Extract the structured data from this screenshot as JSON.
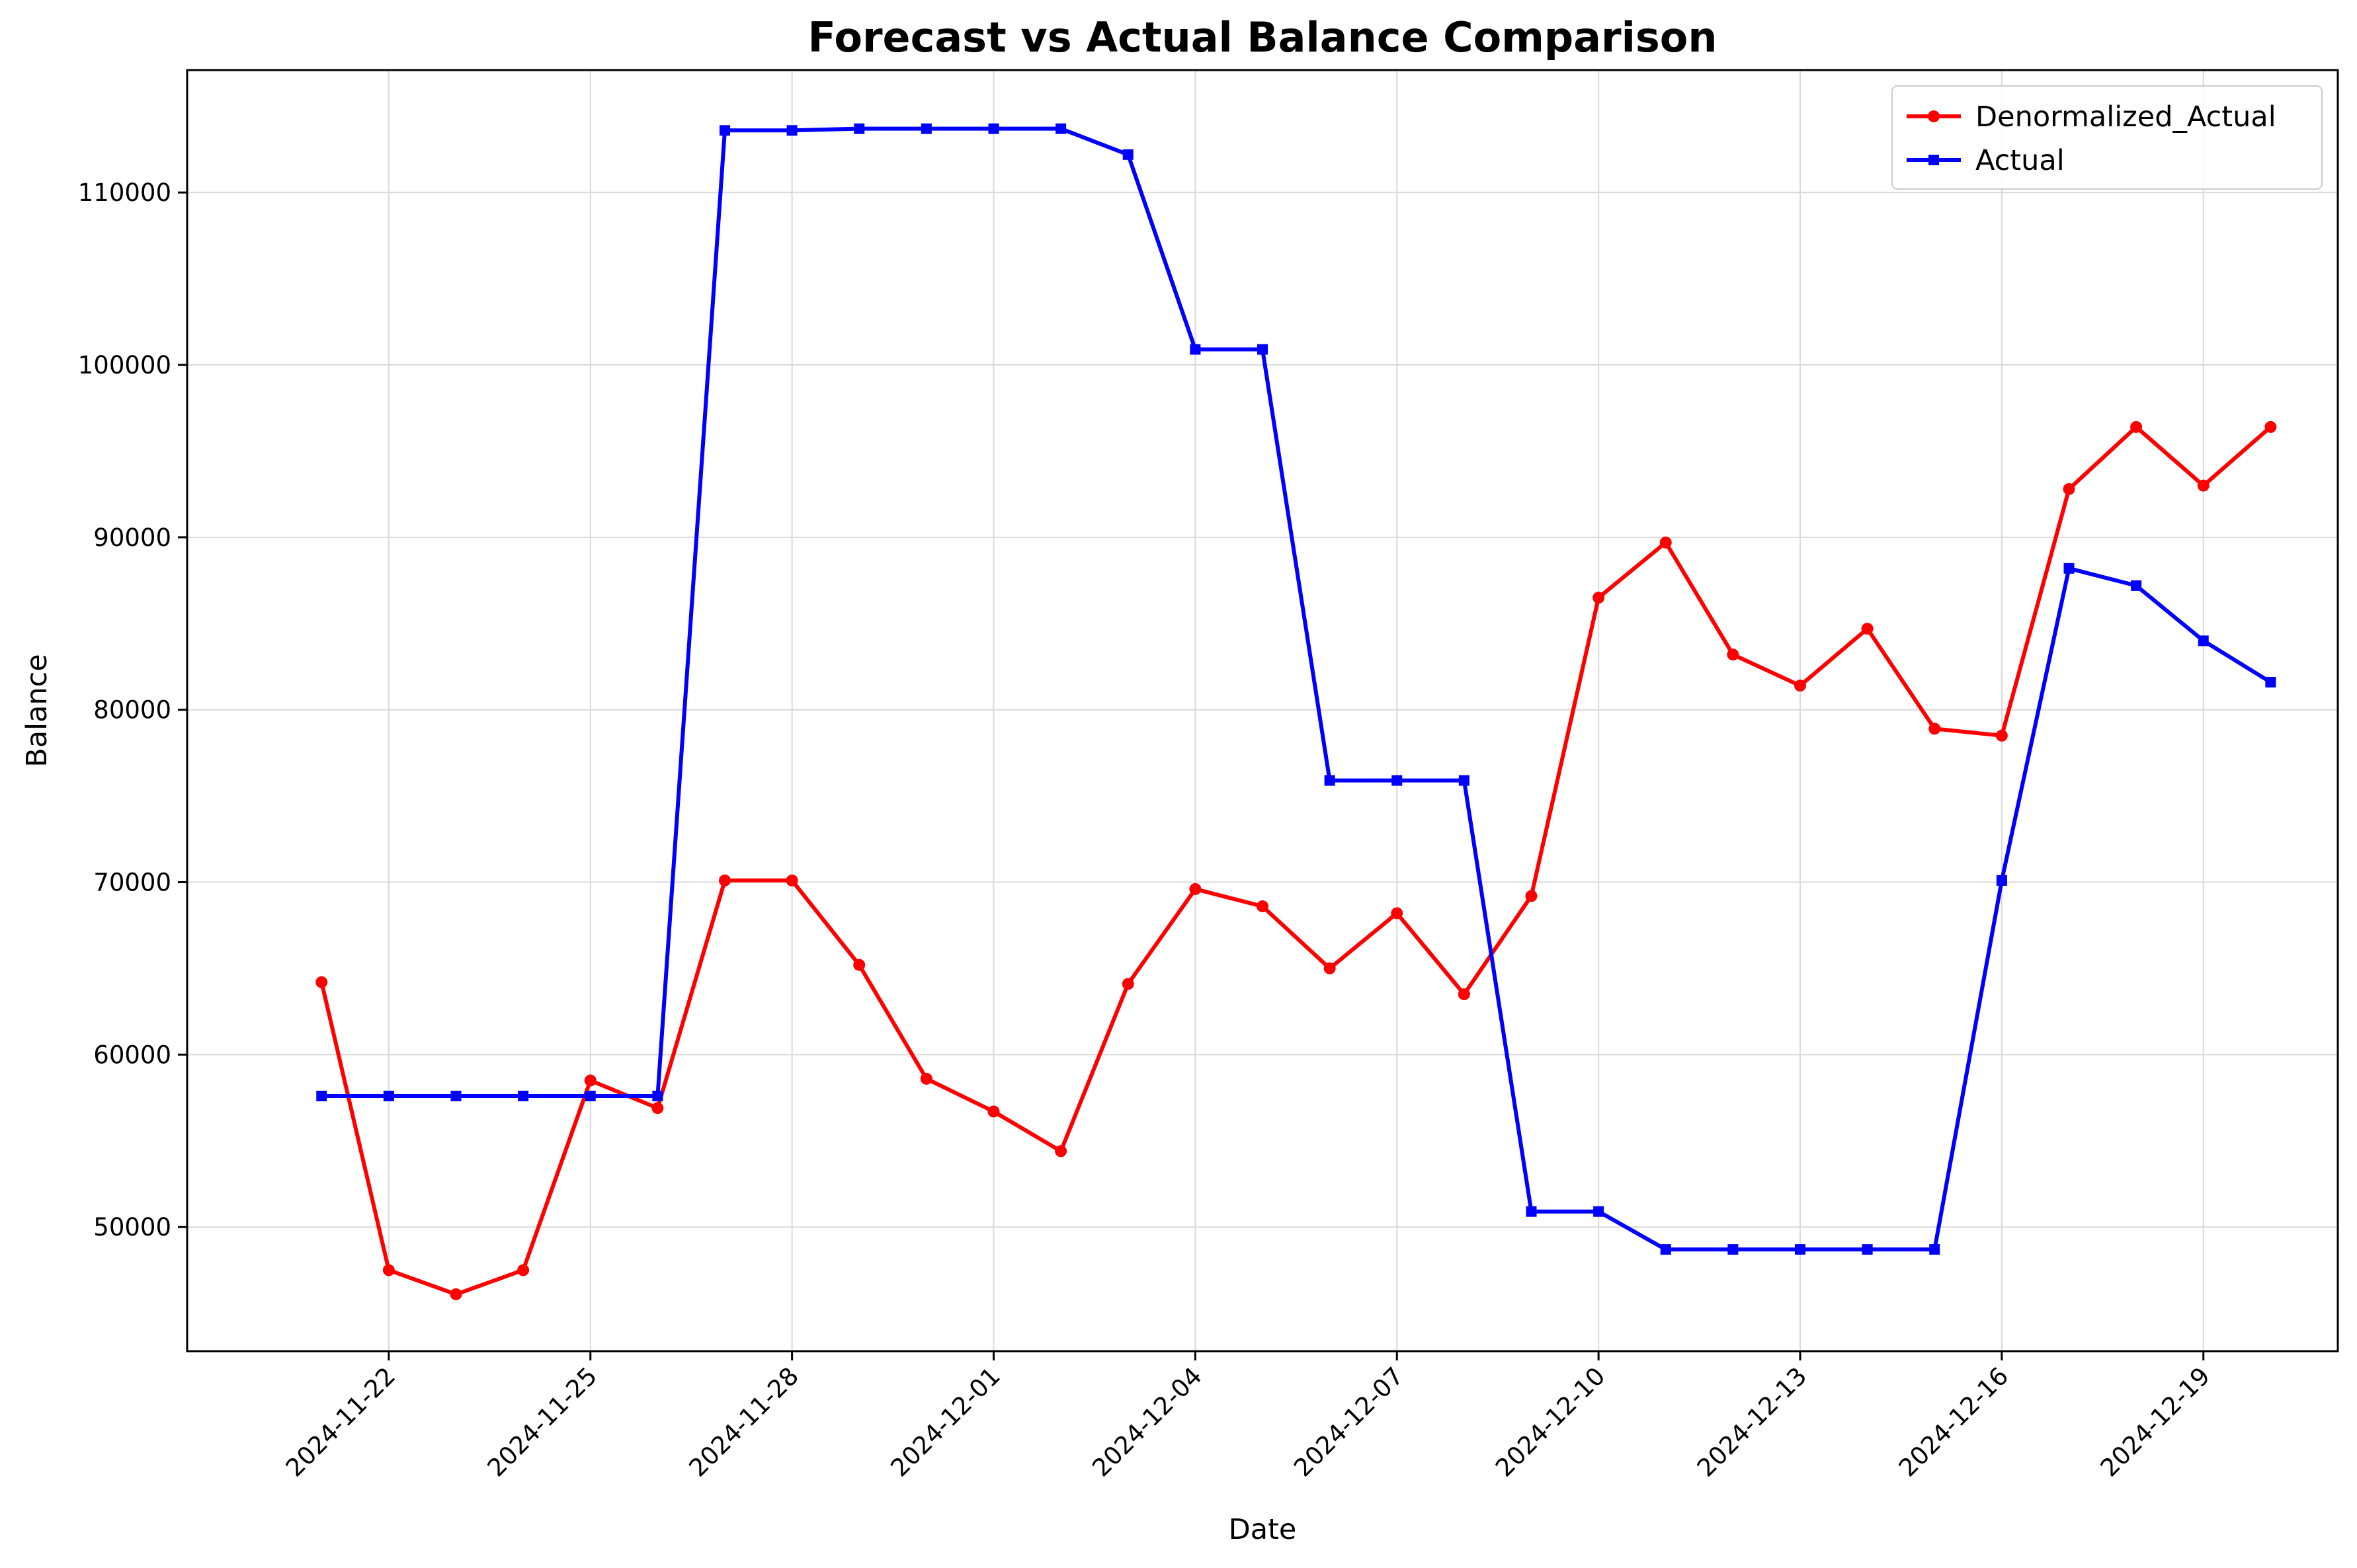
{
  "chart_data": {
    "type": "line",
    "title": "Forecast vs Actual Balance Comparison",
    "xlabel": "Date",
    "ylabel": "Balance",
    "x": [
      "2024-11-21",
      "2024-11-22",
      "2024-11-23",
      "2024-11-24",
      "2024-11-25",
      "2024-11-26",
      "2024-11-27",
      "2024-11-28",
      "2024-11-29",
      "2024-11-30",
      "2024-12-01",
      "2024-12-02",
      "2024-12-03",
      "2024-12-04",
      "2024-12-05",
      "2024-12-06",
      "2024-12-07",
      "2024-12-08",
      "2024-12-09",
      "2024-12-10",
      "2024-12-11",
      "2024-12-12",
      "2024-12-13",
      "2024-12-14",
      "2024-12-15",
      "2024-12-16",
      "2024-12-17",
      "2024-12-18",
      "2024-12-19",
      "2024-12-20"
    ],
    "xlim": [
      "2024-11-19",
      "2024-12-21"
    ],
    "ylim": [
      42800,
      117100
    ],
    "x_ticks": [
      "2024-11-22",
      "2024-11-25",
      "2024-11-28",
      "2024-12-01",
      "2024-12-04",
      "2024-12-07",
      "2024-12-10",
      "2024-12-13",
      "2024-12-16",
      "2024-12-19"
    ],
    "y_ticks": [
      50000,
      60000,
      70000,
      80000,
      90000,
      100000,
      110000
    ],
    "grid": true,
    "legend_position": "top-right",
    "series": [
      {
        "name": "Denormalized_Actual",
        "color": "#ff0000",
        "marker": "circle",
        "values": [
          64200,
          47500,
          46100,
          47500,
          58500,
          56900,
          70100,
          70100,
          65200,
          58600,
          56700,
          54400,
          64100,
          69600,
          68600,
          65000,
          68200,
          63500,
          69200,
          86500,
          89700,
          83200,
          81400,
          84700,
          78900,
          78500,
          92800,
          96400,
          93000,
          96400
        ]
      },
      {
        "name": "Actual",
        "color": "#0000ff",
        "marker": "square",
        "values": [
          57600,
          57600,
          57600,
          57600,
          57600,
          57600,
          113600,
          113600,
          113700,
          113700,
          113700,
          113700,
          112200,
          100900,
          100900,
          75900,
          75900,
          75900,
          50900,
          50900,
          48700,
          48700,
          48700,
          48700,
          48700,
          70100,
          88200,
          87200,
          84000,
          81600
        ]
      }
    ]
  }
}
